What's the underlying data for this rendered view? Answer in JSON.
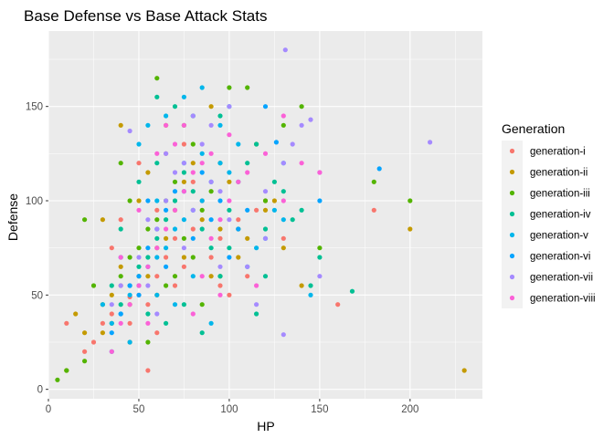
{
  "chart_data": {
    "type": "scatter",
    "title": "Base Defense vs Base Attack Stats",
    "xlabel": "HP",
    "ylabel": "Defense",
    "xlim": [
      0,
      240
    ],
    "ylim": [
      -5,
      190
    ],
    "x_ticks": [
      0,
      50,
      100,
      150,
      200
    ],
    "y_ticks": [
      0,
      50,
      100,
      150
    ],
    "grid": true,
    "legend": {
      "title": "Generation",
      "position": "right"
    },
    "series": [
      {
        "name": "generation-i",
        "color": "#F8766D",
        "points": [
          [
            10,
            35
          ],
          [
            20,
            20
          ],
          [
            25,
            25
          ],
          [
            30,
            35
          ],
          [
            35,
            40
          ],
          [
            40,
            55
          ],
          [
            45,
            49
          ],
          [
            50,
            50
          ],
          [
            55,
            45
          ],
          [
            60,
            60
          ],
          [
            65,
            70
          ],
          [
            70,
            80
          ],
          [
            75,
            65
          ],
          [
            80,
            85
          ],
          [
            90,
            70
          ],
          [
            95,
            80
          ],
          [
            105,
            90
          ],
          [
            110,
            60
          ],
          [
            120,
            100
          ],
          [
            130,
            80
          ],
          [
            55,
            10
          ],
          [
            60,
            95
          ],
          [
            40,
            90
          ],
          [
            35,
            75
          ],
          [
            50,
            120
          ],
          [
            65,
            125
          ],
          [
            80,
            110
          ],
          [
            160,
            45
          ],
          [
            180,
            95
          ],
          [
            45,
            35
          ],
          [
            70,
            55
          ],
          [
            85,
            100
          ],
          [
            100,
            50
          ],
          [
            60,
            30
          ],
          [
            95,
            55
          ],
          [
            115,
            95
          ],
          [
            75,
            130
          ]
        ]
      },
      {
        "name": "generation-ii",
        "color": "#C49A00",
        "points": [
          [
            10,
            10
          ],
          [
            15,
            40
          ],
          [
            20,
            30
          ],
          [
            30,
            30
          ],
          [
            35,
            50
          ],
          [
            40,
            65
          ],
          [
            45,
            45
          ],
          [
            55,
            60
          ],
          [
            60,
            75
          ],
          [
            65,
            80
          ],
          [
            70,
            95
          ],
          [
            75,
            70
          ],
          [
            85,
            90
          ],
          [
            90,
            60
          ],
          [
            95,
            85
          ],
          [
            100,
            110
          ],
          [
            110,
            80
          ],
          [
            120,
            95
          ],
          [
            130,
            75
          ],
          [
            200,
            85
          ],
          [
            230,
            10
          ],
          [
            50,
            100
          ],
          [
            55,
            115
          ],
          [
            40,
            140
          ],
          [
            65,
            140
          ],
          [
            80,
            120
          ],
          [
            90,
            150
          ],
          [
            105,
            70
          ],
          [
            30,
            90
          ],
          [
            45,
            25
          ],
          [
            75,
            110
          ],
          [
            60,
            50
          ],
          [
            140,
            55
          ],
          [
            125,
            100
          ],
          [
            115,
            130
          ]
        ]
      },
      {
        "name": "generation-iii",
        "color": "#53B400",
        "points": [
          [
            5,
            5
          ],
          [
            10,
            10
          ],
          [
            20,
            15
          ],
          [
            20,
            90
          ],
          [
            25,
            55
          ],
          [
            30,
            45
          ],
          [
            40,
            60
          ],
          [
            45,
            70
          ],
          [
            50,
            75
          ],
          [
            55,
            85
          ],
          [
            60,
            90
          ],
          [
            65,
            100
          ],
          [
            70,
            110
          ],
          [
            75,
            80
          ],
          [
            80,
            70
          ],
          [
            85,
            95
          ],
          [
            90,
            105
          ],
          [
            95,
            60
          ],
          [
            100,
            160
          ],
          [
            110,
            160
          ],
          [
            120,
            100
          ],
          [
            130,
            140
          ],
          [
            140,
            150
          ],
          [
            150,
            75
          ],
          [
            180,
            110
          ],
          [
            200,
            100
          ],
          [
            55,
            25
          ],
          [
            60,
            165
          ],
          [
            80,
            130
          ],
          [
            85,
            45
          ],
          [
            70,
            60
          ],
          [
            50,
            60
          ],
          [
            40,
            120
          ],
          [
            45,
            100
          ],
          [
            65,
            55
          ],
          [
            95,
            120
          ],
          [
            105,
            85
          ],
          [
            35,
            35
          ],
          [
            75,
            140
          ]
        ]
      },
      {
        "name": "generation-iv",
        "color": "#00C094",
        "points": [
          [
            40,
            45
          ],
          [
            45,
            55
          ],
          [
            50,
            65
          ],
          [
            55,
            70
          ],
          [
            60,
            80
          ],
          [
            65,
            90
          ],
          [
            70,
            100
          ],
          [
            75,
            115
          ],
          [
            80,
            105
          ],
          [
            85,
            85
          ],
          [
            90,
            75
          ],
          [
            95,
            60
          ],
          [
            100,
            95
          ],
          [
            105,
            110
          ],
          [
            110,
            120
          ],
          [
            115,
            130
          ],
          [
            120,
            85
          ],
          [
            125,
            110
          ],
          [
            135,
            90
          ],
          [
            145,
            55
          ],
          [
            150,
            70
          ],
          [
            168,
            52
          ],
          [
            60,
            155
          ],
          [
            70,
            150
          ],
          [
            80,
            145
          ],
          [
            95,
            145
          ],
          [
            120,
            60
          ],
          [
            40,
            85
          ],
          [
            50,
            110
          ],
          [
            35,
            55
          ],
          [
            55,
            40
          ],
          [
            75,
            45
          ],
          [
            85,
            30
          ],
          [
            65,
            35
          ],
          [
            100,
            75
          ],
          [
            140,
            95
          ],
          [
            130,
            105
          ],
          [
            115,
            40
          ],
          [
            60,
            120
          ]
        ]
      },
      {
        "name": "generation-v",
        "color": "#00B6EB",
        "points": [
          [
            30,
            45
          ],
          [
            35,
            35
          ],
          [
            40,
            40
          ],
          [
            45,
            50
          ],
          [
            50,
            55
          ],
          [
            55,
            65
          ],
          [
            60,
            70
          ],
          [
            65,
            75
          ],
          [
            70,
            85
          ],
          [
            75,
            90
          ],
          [
            80,
            95
          ],
          [
            85,
            100
          ],
          [
            90,
            110
          ],
          [
            95,
            120
          ],
          [
            100,
            115
          ],
          [
            105,
            130
          ],
          [
            110,
            65
          ],
          [
            115,
            75
          ],
          [
            120,
            80
          ],
          [
            130,
            90
          ],
          [
            145,
            50
          ],
          [
            55,
            140
          ],
          [
            65,
            145
          ],
          [
            75,
            155
          ],
          [
            85,
            160
          ],
          [
            95,
            140
          ],
          [
            60,
            100
          ],
          [
            50,
            130
          ],
          [
            40,
            70
          ],
          [
            35,
            20
          ],
          [
            45,
            25
          ],
          [
            70,
            45
          ],
          [
            80,
            60
          ],
          [
            90,
            35
          ],
          [
            100,
            150
          ],
          [
            125,
            95
          ],
          [
            60,
            50
          ],
          [
            75,
            105
          ],
          [
            85,
            125
          ]
        ]
      },
      {
        "name": "generation-vi",
        "color": "#06A4FF",
        "points": [
          [
            35,
            30
          ],
          [
            40,
            40
          ],
          [
            45,
            55
          ],
          [
            50,
            60
          ],
          [
            55,
            75
          ],
          [
            60,
            85
          ],
          [
            65,
            95
          ],
          [
            70,
            105
          ],
          [
            80,
            80
          ],
          [
            90,
            90
          ],
          [
            95,
            100
          ],
          [
            100,
            70
          ],
          [
            105,
            85
          ],
          [
            110,
            95
          ],
          [
            120,
            150
          ],
          [
            126,
            131
          ],
          [
            130,
            120
          ],
          [
            150,
            100
          ],
          [
            183,
            117
          ],
          [
            50,
            50
          ],
          [
            75,
            120
          ],
          [
            85,
            115
          ],
          [
            65,
            65
          ],
          [
            55,
            100
          ]
        ]
      },
      {
        "name": "generation-vii",
        "color": "#A58AFF",
        "points": [
          [
            40,
            55
          ],
          [
            45,
            137
          ],
          [
            50,
            70
          ],
          [
            55,
            90
          ],
          [
            60,
            85
          ],
          [
            65,
            100
          ],
          [
            70,
            115
          ],
          [
            75,
            120
          ],
          [
            80,
            95
          ],
          [
            85,
            130
          ],
          [
            90,
            110
          ],
          [
            95,
            105
          ],
          [
            100,
            90
          ],
          [
            110,
            65
          ],
          [
            120,
            105
          ],
          [
            130,
            120
          ],
          [
            131,
            180
          ],
          [
            140,
            140
          ],
          [
            145,
            143
          ],
          [
            150,
            115
          ],
          [
            211,
            131
          ],
          [
            130,
            29
          ],
          [
            150,
            60
          ],
          [
            60,
            40
          ],
          [
            75,
            75
          ],
          [
            90,
            140
          ],
          [
            35,
            45
          ],
          [
            65,
            125
          ],
          [
            55,
            55
          ],
          [
            80,
            145
          ],
          [
            100,
            150
          ],
          [
            120,
            80
          ],
          [
            135,
            130
          ],
          [
            115,
            45
          ],
          [
            95,
            65
          ]
        ]
      },
      {
        "name": "generation-viii",
        "color": "#FB61D7",
        "points": [
          [
            35,
            20
          ],
          [
            40,
            35
          ],
          [
            45,
            45
          ],
          [
            50,
            55
          ],
          [
            55,
            65
          ],
          [
            60,
            75
          ],
          [
            65,
            85
          ],
          [
            70,
            95
          ],
          [
            75,
            105
          ],
          [
            80,
            115
          ],
          [
            85,
            120
          ],
          [
            90,
            125
          ],
          [
            95,
            90
          ],
          [
            100,
            100
          ],
          [
            105,
            110
          ],
          [
            110,
            115
          ],
          [
            120,
            125
          ],
          [
            130,
            145
          ],
          [
            130,
            100
          ],
          [
            140,
            120
          ],
          [
            150,
            115
          ],
          [
            70,
            130
          ],
          [
            75,
            140
          ],
          [
            60,
            125
          ],
          [
            50,
            95
          ],
          [
            40,
            70
          ],
          [
            55,
            35
          ],
          [
            85,
            60
          ],
          [
            95,
            50
          ],
          [
            65,
            140
          ],
          [
            80,
            40
          ],
          [
            115,
            55
          ],
          [
            90,
            80
          ],
          [
            100,
            135
          ]
        ]
      }
    ]
  }
}
